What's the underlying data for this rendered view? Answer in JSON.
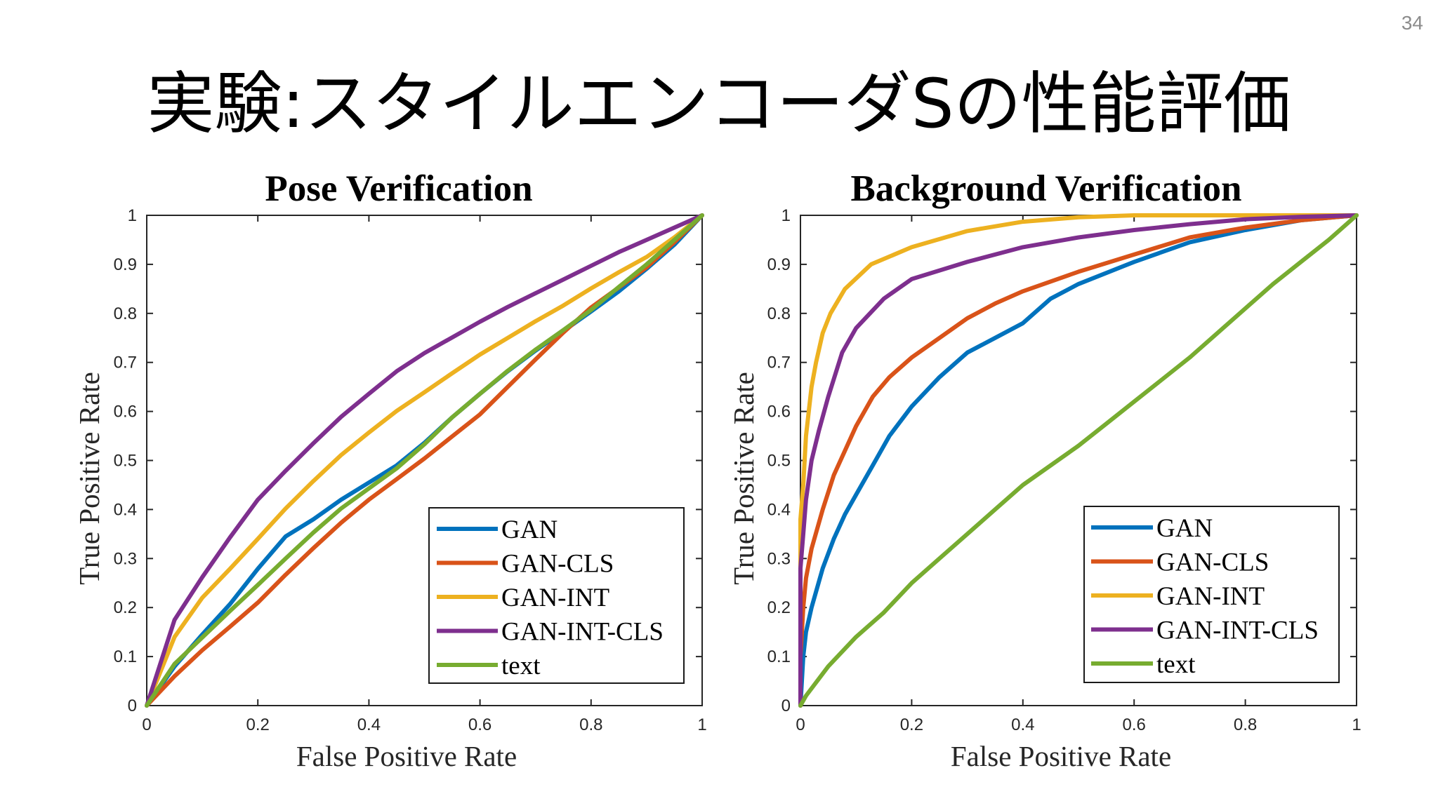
{
  "slide": {
    "page_number": "34",
    "title": "実験:スタイルエンコーダSの性能評価"
  },
  "colors": {
    "background": "#ffffff",
    "axis": "#262626",
    "legend_border": "#1a1a1a",
    "page_number": "#8c8c8c"
  },
  "chart_data": [
    {
      "type": "line",
      "title": "Pose Verification",
      "xlabel": "False Positive Rate",
      "ylabel": "True Positive Rate",
      "xlim": [
        0,
        1
      ],
      "ylim": [
        0,
        1
      ],
      "xticks": [
        0,
        0.2,
        0.4,
        0.6,
        0.8,
        1
      ],
      "xtick_labels": [
        "0",
        "0.2",
        "0.4",
        "0.6",
        "0.8",
        "1"
      ],
      "yticks": [
        0,
        0.1,
        0.2,
        0.3,
        0.4,
        0.5,
        0.6,
        0.7,
        0.8,
        0.9,
        1
      ],
      "ytick_labels": [
        "0",
        "0.1",
        "0.2",
        "0.3",
        "0.4",
        "0.5",
        "0.6",
        "0.7",
        "0.8",
        "0.9",
        "1"
      ],
      "grid": false,
      "legend_position": "bottom-right",
      "series": [
        {
          "name": "GAN",
          "color": "#0072BD",
          "x": [
            0,
            0.05,
            0.1,
            0.15,
            0.2,
            0.25,
            0.3,
            0.35,
            0.4,
            0.45,
            0.5,
            0.55,
            0.6,
            0.65,
            0.7,
            0.75,
            0.8,
            0.85,
            0.9,
            0.95,
            1
          ],
          "y": [
            0,
            0.08,
            0.145,
            0.207,
            0.279,
            0.345,
            0.38,
            0.42,
            0.455,
            0.49,
            0.536,
            0.588,
            0.636,
            0.682,
            0.724,
            0.764,
            0.804,
            0.845,
            0.891,
            0.94,
            1
          ]
        },
        {
          "name": "GAN-CLS",
          "color": "#D95319",
          "x": [
            0,
            0.05,
            0.1,
            0.15,
            0.2,
            0.25,
            0.3,
            0.35,
            0.4,
            0.45,
            0.5,
            0.55,
            0.6,
            0.65,
            0.7,
            0.75,
            0.8,
            0.85,
            0.9,
            0.95,
            1
          ],
          "y": [
            0,
            0.06,
            0.113,
            0.161,
            0.21,
            0.267,
            0.321,
            0.373,
            0.42,
            0.462,
            0.504,
            0.549,
            0.594,
            0.65,
            0.706,
            0.761,
            0.812,
            0.853,
            0.894,
            0.945,
            1
          ]
        },
        {
          "name": "GAN-INT",
          "color": "#EDB120",
          "x": [
            0,
            0.05,
            0.1,
            0.15,
            0.2,
            0.25,
            0.3,
            0.35,
            0.4,
            0.45,
            0.5,
            0.55,
            0.6,
            0.65,
            0.7,
            0.75,
            0.8,
            0.85,
            0.9,
            0.95,
            1
          ],
          "y": [
            0,
            0.14,
            0.22,
            0.279,
            0.34,
            0.402,
            0.458,
            0.511,
            0.557,
            0.601,
            0.639,
            0.678,
            0.716,
            0.75,
            0.784,
            0.816,
            0.851,
            0.884,
            0.915,
            0.955,
            1
          ]
        },
        {
          "name": "GAN-INT-CLS",
          "color": "#7E2F8E",
          "x": [
            0,
            0.05,
            0.1,
            0.15,
            0.2,
            0.25,
            0.3,
            0.35,
            0.4,
            0.45,
            0.5,
            0.55,
            0.6,
            0.65,
            0.7,
            0.75,
            0.8,
            0.85,
            0.9,
            0.95,
            1
          ],
          "y": [
            0,
            0.175,
            0.262,
            0.343,
            0.42,
            0.479,
            0.535,
            0.589,
            0.636,
            0.682,
            0.719,
            0.751,
            0.783,
            0.813,
            0.841,
            0.869,
            0.897,
            0.925,
            0.95,
            0.975,
            1
          ]
        },
        {
          "name": "text",
          "color": "#77AC30",
          "x": [
            0,
            0.05,
            0.1,
            0.15,
            0.2,
            0.25,
            0.3,
            0.35,
            0.4,
            0.45,
            0.5,
            0.55,
            0.6,
            0.65,
            0.7,
            0.75,
            0.8,
            0.85,
            0.9,
            0.95,
            1
          ],
          "y": [
            0,
            0.085,
            0.139,
            0.193,
            0.246,
            0.3,
            0.353,
            0.402,
            0.443,
            0.484,
            0.533,
            0.588,
            0.636,
            0.683,
            0.726,
            0.766,
            0.807,
            0.854,
            0.9,
            0.95,
            1
          ]
        }
      ]
    },
    {
      "type": "line",
      "title": "Background Verification",
      "xlabel": "False Positive Rate",
      "ylabel": "True Positive Rate",
      "xlim": [
        0,
        1
      ],
      "ylim": [
        0,
        1
      ],
      "xticks": [
        0,
        0.2,
        0.4,
        0.6,
        0.8,
        1
      ],
      "xtick_labels": [
        "0",
        "0.2",
        "0.4",
        "0.6",
        "0.8",
        "1"
      ],
      "yticks": [
        0,
        0.1,
        0.2,
        0.3,
        0.4,
        0.5,
        0.6,
        0.7,
        0.8,
        0.9,
        1
      ],
      "ytick_labels": [
        "0",
        "0.1",
        "0.2",
        "0.3",
        "0.4",
        "0.5",
        "0.6",
        "0.7",
        "0.8",
        "0.9",
        "1"
      ],
      "grid": false,
      "legend_position": "bottom-right",
      "series": [
        {
          "name": "GAN",
          "color": "#0072BD",
          "x": [
            0,
            0.005,
            0.01,
            0.02,
            0.04,
            0.06,
            0.08,
            0.1,
            0.13,
            0.16,
            0.2,
            0.25,
            0.3,
            0.35,
            0.4,
            0.45,
            0.5,
            0.6,
            0.7,
            0.8,
            0.9,
            1
          ],
          "y": [
            0,
            0.1,
            0.15,
            0.2,
            0.28,
            0.34,
            0.39,
            0.43,
            0.49,
            0.55,
            0.61,
            0.67,
            0.72,
            0.75,
            0.78,
            0.83,
            0.86,
            0.905,
            0.945,
            0.97,
            0.99,
            1
          ]
        },
        {
          "name": "GAN-CLS",
          "color": "#D95319",
          "x": [
            0,
            0,
            0.005,
            0.01,
            0.02,
            0.04,
            0.06,
            0.08,
            0.1,
            0.13,
            0.16,
            0.2,
            0.25,
            0.3,
            0.35,
            0.4,
            0.5,
            0.6,
            0.7,
            0.8,
            0.9,
            1
          ],
          "y": [
            0,
            0.1,
            0.2,
            0.26,
            0.32,
            0.4,
            0.47,
            0.52,
            0.57,
            0.63,
            0.67,
            0.71,
            0.75,
            0.79,
            0.82,
            0.845,
            0.885,
            0.92,
            0.955,
            0.975,
            0.99,
            1
          ]
        },
        {
          "name": "GAN-INT",
          "color": "#EDB120",
          "x": [
            0,
            0,
            0.005,
            0.01,
            0.02,
            0.028,
            0.04,
            0.054,
            0.08,
            0.127,
            0.2,
            0.3,
            0.4,
            0.5,
            0.6,
            1
          ],
          "y": [
            0,
            0.38,
            0.45,
            0.55,
            0.65,
            0.7,
            0.76,
            0.8,
            0.85,
            0.9,
            0.935,
            0.968,
            0.987,
            0.996,
            1,
            1
          ]
        },
        {
          "name": "GAN-INT-CLS",
          "color": "#7E2F8E",
          "x": [
            0,
            0,
            0.005,
            0.01,
            0.02,
            0.033,
            0.05,
            0.075,
            0.1,
            0.15,
            0.2,
            0.3,
            0.4,
            0.5,
            0.6,
            0.7,
            0.8,
            0.9,
            1
          ],
          "y": [
            0,
            0.28,
            0.35,
            0.42,
            0.5,
            0.56,
            0.63,
            0.72,
            0.77,
            0.83,
            0.87,
            0.905,
            0.935,
            0.955,
            0.97,
            0.982,
            0.992,
            0.997,
            1
          ]
        },
        {
          "name": "text",
          "color": "#77AC30",
          "x": [
            0,
            0.01,
            0.05,
            0.1,
            0.15,
            0.2,
            0.25,
            0.3,
            0.35,
            0.4,
            0.45,
            0.5,
            0.55,
            0.6,
            0.65,
            0.7,
            0.75,
            0.8,
            0.85,
            0.9,
            0.95,
            1
          ],
          "y": [
            0,
            0.02,
            0.08,
            0.14,
            0.19,
            0.25,
            0.3,
            0.35,
            0.4,
            0.45,
            0.49,
            0.53,
            0.575,
            0.62,
            0.665,
            0.71,
            0.76,
            0.81,
            0.86,
            0.905,
            0.95,
            1
          ]
        }
      ]
    }
  ]
}
